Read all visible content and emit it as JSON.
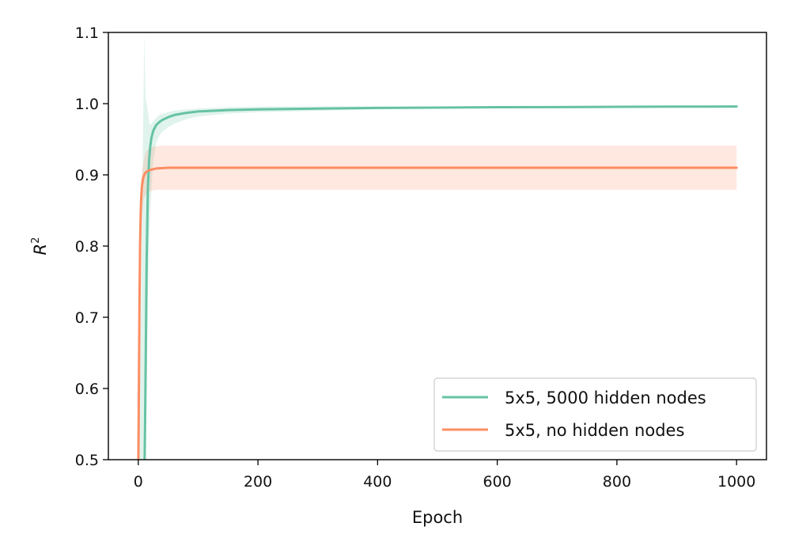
{
  "chart_data": {
    "type": "line",
    "title": "",
    "xlabel": "Epoch",
    "ylabel": "R",
    "ylabel_superscript": "2",
    "xlim": [
      -50,
      1050
    ],
    "ylim": [
      0.5,
      1.1
    ],
    "xticks": [
      0,
      200,
      400,
      600,
      800,
      1000
    ],
    "yticks": [
      0.5,
      0.6,
      0.7,
      0.8,
      0.9,
      1.0,
      1.1
    ],
    "xtick_labels": [
      "0",
      "200",
      "400",
      "600",
      "800",
      "1000"
    ],
    "ytick_labels": [
      "0.5",
      "0.6",
      "0.7",
      "0.8",
      "0.9",
      "1.0",
      "1.1"
    ],
    "grid": false,
    "legend_position": "bottom-right",
    "series": [
      {
        "name": "5x5, 5000 hidden nodes",
        "color": "#66c2a5",
        "band_color": "#66c2a5",
        "x": [
          0,
          10,
          12,
          14,
          16,
          18,
          20,
          22,
          25,
          30,
          35,
          40,
          50,
          60,
          80,
          100,
          150,
          200,
          300,
          400,
          500,
          600,
          700,
          800,
          900,
          1000
        ],
        "y": [
          0.4,
          0.45,
          0.6,
          0.78,
          0.88,
          0.92,
          0.94,
          0.952,
          0.962,
          0.97,
          0.974,
          0.977,
          0.981,
          0.984,
          0.987,
          0.989,
          0.991,
          0.992,
          0.993,
          0.994,
          0.9945,
          0.995,
          0.9952,
          0.9955,
          0.9958,
          0.996
        ],
        "lower": [
          0.4,
          0.42,
          0.5,
          0.6,
          0.72,
          0.8,
          0.85,
          0.88,
          0.92,
          0.945,
          0.955,
          0.96,
          0.967,
          0.972,
          0.978,
          0.982,
          0.986,
          0.988,
          0.99,
          0.992,
          0.993,
          0.994,
          0.9945,
          0.995,
          0.9952,
          0.9955
        ],
        "upper": [
          0.4,
          1.1,
          1.01,
          1.0,
          0.99,
          0.975,
          0.97,
          0.972,
          0.975,
          0.98,
          0.984,
          0.986,
          0.988,
          0.99,
          0.992,
          0.993,
          0.995,
          0.996,
          0.996,
          0.996,
          0.996,
          0.996,
          0.996,
          0.996,
          0.9965,
          0.997
        ]
      },
      {
        "name": "5x5, no hidden nodes",
        "color": "#fc8d62",
        "band_color": "#fc8d62",
        "x": [
          0,
          1,
          2,
          3,
          4,
          5,
          6,
          8,
          10,
          12,
          15,
          20,
          25,
          30,
          40,
          50,
          100,
          200,
          400,
          600,
          800,
          1000
        ],
        "y": [
          0.48,
          0.6,
          0.72,
          0.8,
          0.845,
          0.87,
          0.883,
          0.895,
          0.9,
          0.903,
          0.905,
          0.907,
          0.908,
          0.909,
          0.9095,
          0.91,
          0.91,
          0.91,
          0.91,
          0.91,
          0.91,
          0.91
        ],
        "lower": [
          0.48,
          0.55,
          0.65,
          0.74,
          0.79,
          0.82,
          0.84,
          0.86,
          0.868,
          0.872,
          0.875,
          0.877,
          0.878,
          0.879,
          0.879,
          0.879,
          0.879,
          0.879,
          0.879,
          0.879,
          0.879,
          0.879
        ],
        "upper": [
          0.48,
          0.64,
          0.76,
          0.84,
          0.88,
          0.895,
          0.905,
          0.915,
          0.925,
          0.93,
          0.935,
          0.938,
          0.94,
          0.94,
          0.941,
          0.941,
          0.941,
          0.941,
          0.941,
          0.941,
          0.941,
          0.941
        ]
      }
    ]
  }
}
